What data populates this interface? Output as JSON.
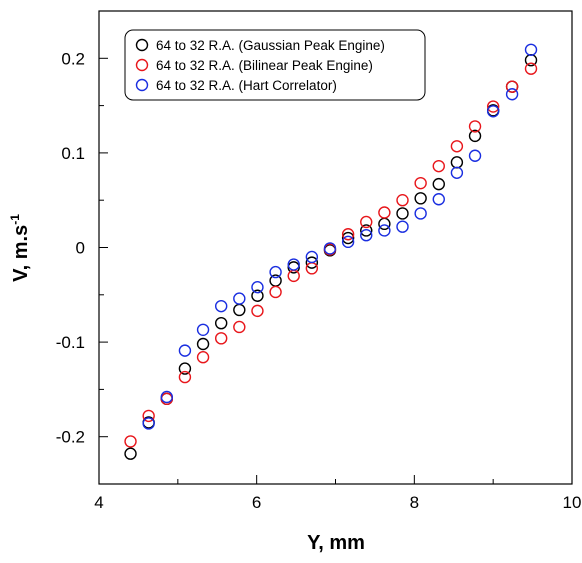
{
  "chart_data": {
    "type": "scatter",
    "xlabel": "Y, mm",
    "ylabel_main": "V, m.s",
    "ylabel_sup": "-1",
    "xlim": [
      4,
      10
    ],
    "ylim": [
      -0.25,
      0.25
    ],
    "xticks": [
      4,
      6,
      8,
      10
    ],
    "xtick_labels": [
      "4",
      "6",
      "8",
      "10"
    ],
    "yticks": [
      -0.2,
      -0.1,
      0,
      0.1,
      0.2
    ],
    "ytick_labels": [
      "-0.2",
      "-0.1",
      "0",
      "0.1",
      "0.2"
    ],
    "grid": false,
    "legend_position": "top-left",
    "marker": "open-circle",
    "series": [
      {
        "name": "64 to 32 R.A. (Gaussian Peak Engine)",
        "color": "#000000",
        "x": [
          4.4,
          4.63,
          4.86,
          5.09,
          5.32,
          5.55,
          5.78,
          6.01,
          6.24,
          6.47,
          6.7,
          6.93,
          7.16,
          7.39,
          7.62,
          7.85,
          8.08,
          8.31,
          8.54,
          8.77,
          9.0,
          9.24,
          9.48
        ],
        "y": [
          -0.218,
          -0.185,
          -0.16,
          -0.128,
          -0.102,
          -0.08,
          -0.066,
          -0.051,
          -0.035,
          -0.021,
          -0.016,
          -0.003,
          0.01,
          0.018,
          0.025,
          0.036,
          0.052,
          0.067,
          0.09,
          0.118,
          0.145,
          0.17,
          0.198
        ]
      },
      {
        "name": "64 to 32 R.A. (Bilinear Peak Engine)",
        "color": "#e8161b",
        "x": [
          4.4,
          4.63,
          4.86,
          5.09,
          5.32,
          5.55,
          5.78,
          6.01,
          6.24,
          6.47,
          6.7,
          6.93,
          7.16,
          7.39,
          7.62,
          7.85,
          8.08,
          8.31,
          8.54,
          8.77,
          9.0,
          9.24,
          9.48
        ],
        "y": [
          -0.205,
          -0.178,
          -0.16,
          -0.137,
          -0.116,
          -0.096,
          -0.084,
          -0.067,
          -0.047,
          -0.03,
          -0.022,
          -0.002,
          0.014,
          0.027,
          0.037,
          0.05,
          0.068,
          0.086,
          0.107,
          0.128,
          0.149,
          0.17,
          0.189
        ]
      },
      {
        "name": "64 to 32 R.A. (Hart Correlator)",
        "color": "#1a2ee0",
        "x": [
          4.63,
          4.86,
          5.09,
          5.32,
          5.55,
          5.78,
          6.01,
          6.24,
          6.47,
          6.7,
          6.93,
          7.16,
          7.39,
          7.62,
          7.85,
          8.08,
          8.31,
          8.54,
          8.77,
          9.0,
          9.24,
          9.48
        ],
        "y": [
          -0.186,
          -0.158,
          -0.109,
          -0.087,
          -0.062,
          -0.054,
          -0.042,
          -0.026,
          -0.018,
          -0.01,
          -0.001,
          0.006,
          0.013,
          0.018,
          0.022,
          0.036,
          0.051,
          0.079,
          0.097,
          0.144,
          0.162,
          0.209
        ]
      }
    ]
  }
}
